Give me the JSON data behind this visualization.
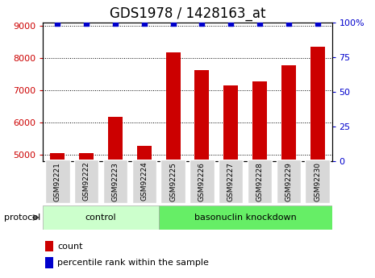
{
  "title": "GDS1978 / 1428163_at",
  "samples": [
    "GSM92221",
    "GSM92222",
    "GSM92223",
    "GSM92224",
    "GSM92225",
    "GSM92226",
    "GSM92227",
    "GSM92228",
    "GSM92229",
    "GSM92230"
  ],
  "counts": [
    5050,
    5060,
    6170,
    5280,
    8175,
    7620,
    7150,
    7280,
    7770,
    8350
  ],
  "percentile_ranks_y": [
    99,
    99,
    99,
    99,
    99,
    99,
    99,
    99,
    99,
    99
  ],
  "groups": {
    "control": [
      0,
      1,
      2,
      3
    ],
    "basonuclin knockdown": [
      4,
      5,
      6,
      7,
      8,
      9
    ]
  },
  "group_colors": {
    "control": "#ccffcc",
    "basonuclin knockdown": "#66ee66"
  },
  "bar_color": "#cc0000",
  "dot_color": "#0000cc",
  "ylim_left": [
    4800,
    9100
  ],
  "ylim_right": [
    0,
    100
  ],
  "yticks_left": [
    5000,
    6000,
    7000,
    8000,
    9000
  ],
  "yticks_right": [
    0,
    25,
    50,
    75,
    100
  ],
  "left_tick_color": "#cc0000",
  "right_tick_color": "#0000cc",
  "title_fontsize": 12,
  "tick_fontsize": 8,
  "bar_width": 0.5
}
